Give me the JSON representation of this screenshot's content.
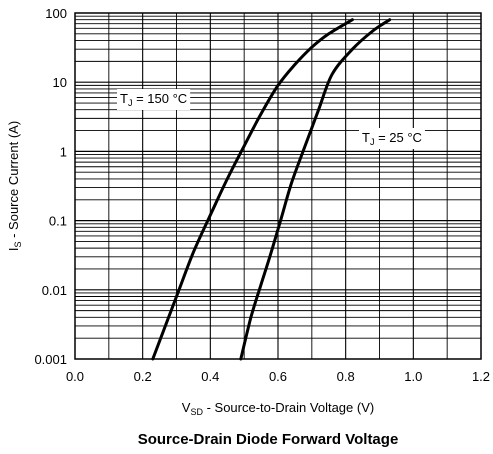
{
  "chart_data": {
    "type": "line",
    "title": "Source-Drain Diode Forward Voltage",
    "xlabel": {
      "main": "V",
      "sub": "SD",
      "rest": " - Source-to-Drain Voltage (V)"
    },
    "ylabel": {
      "main": "I",
      "sub": "S",
      "rest": " - Source Current (A)"
    },
    "xlim": [
      0.0,
      1.2
    ],
    "ylim": [
      0.001,
      100
    ],
    "yscale": "log",
    "grid": true,
    "x_ticks": [
      "0.0",
      "0.2",
      "0.4",
      "0.6",
      "0.8",
      "1.0",
      "1.2"
    ],
    "y_ticks": [
      "100",
      "10",
      "1",
      "0.1",
      "0.01",
      "0.001"
    ],
    "series": [
      {
        "name": {
          "main": "T",
          "sub": "J",
          "rest": " = 150 °C"
        },
        "x": [
          0.23,
          0.3,
          0.35,
          0.4,
          0.45,
          0.5,
          0.55,
          0.6,
          0.65,
          0.7,
          0.75,
          0.82
        ],
        "y": [
          0.001,
          0.008,
          0.035,
          0.12,
          0.4,
          1.2,
          3.5,
          9.0,
          18,
          32,
          50,
          80
        ]
      },
      {
        "name": {
          "main": "T",
          "sub": "J",
          "rest": " = 25 °C"
        },
        "x": [
          0.49,
          0.52,
          0.55,
          0.58,
          0.61,
          0.64,
          0.68,
          0.72,
          0.76,
          0.82,
          0.88,
          0.93
        ],
        "y": [
          0.001,
          0.004,
          0.012,
          0.035,
          0.11,
          0.35,
          1.2,
          4.0,
          13,
          30,
          55,
          80
        ]
      }
    ]
  }
}
